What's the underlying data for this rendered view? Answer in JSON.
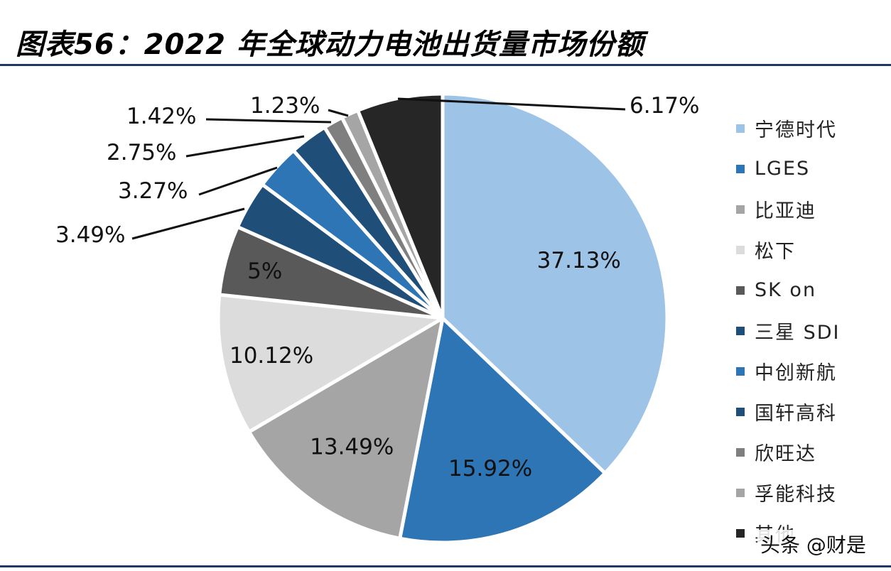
{
  "title": "图表56：2022 年全球动力电池出货量市场份额",
  "watermark": "头条 @财是",
  "chart_data": {
    "type": "pie",
    "title": "图表56：2022 年全球动力电池出货量市场份额",
    "legend_position": "right",
    "start_angle": "12 o'clock",
    "direction": "clockwise",
    "slices": [
      {
        "name": "宁德时代",
        "value": 37.13,
        "label": "37.13%",
        "color": "#9dc3e6",
        "label_mode": "inside"
      },
      {
        "name": "LGES",
        "value": 15.92,
        "label": "15.92%",
        "color": "#2e75b6",
        "label_mode": "inside"
      },
      {
        "name": "比亚迪",
        "value": 13.49,
        "label": "13.49%",
        "color": "#a5a5a5",
        "label_mode": "inside"
      },
      {
        "name": "松下",
        "value": 10.12,
        "label": "10.12%",
        "color": "#dcdcdc",
        "label_mode": "inside"
      },
      {
        "name": "SK on",
        "value": 5,
        "label": "5%",
        "color": "#595959",
        "label_mode": "inside"
      },
      {
        "name": "三星 SDI",
        "value": 3.49,
        "label": "3.49%",
        "color": "#1f4e79",
        "label_mode": "outside"
      },
      {
        "name": "中创新航",
        "value": 3.27,
        "label": "3.27%",
        "color": "#2e75b6",
        "label_mode": "outside"
      },
      {
        "name": "国轩高科",
        "value": 2.75,
        "label": "2.75%",
        "color": "#1f4e79",
        "label_mode": "outside"
      },
      {
        "name": "欣旺达",
        "value": 1.42,
        "label": "1.42%",
        "color": "#7f7f7f",
        "label_mode": "outside"
      },
      {
        "name": "孚能科技",
        "value": 1.23,
        "label": "1.23%",
        "color": "#a5a5a5",
        "label_mode": "outside"
      },
      {
        "name": "其他",
        "value": 6.17,
        "label": "6.17%",
        "color": "#262626",
        "label_mode": "outside"
      }
    ]
  }
}
